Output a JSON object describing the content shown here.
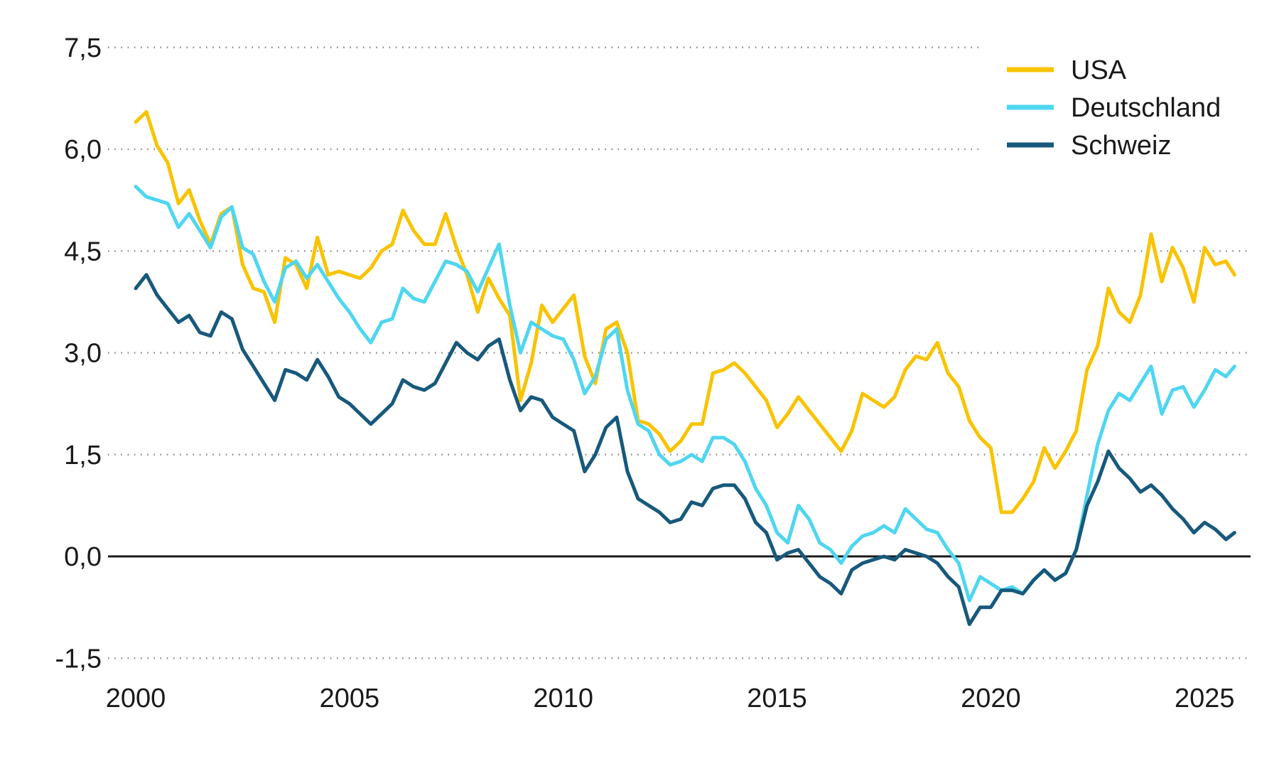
{
  "chart_data": {
    "type": "line",
    "title": "",
    "xlabel": "",
    "ylabel": "",
    "ylim": [
      -1.5,
      7.5
    ],
    "xlim": [
      2000,
      2025.7
    ],
    "grid": "dotted horizontal gridlines, solid black zero line",
    "legend_position": "top-right",
    "background_color": "#ffffff",
    "gridline_color": "#8c8c8c",
    "zero_line_color": "#1a1a1a",
    "text_color": "#1a1a1a",
    "y_ticks": [
      {
        "value": 7.5,
        "label": "7,5"
      },
      {
        "value": 6.0,
        "label": "6,0"
      },
      {
        "value": 4.5,
        "label": "4,5"
      },
      {
        "value": 3.0,
        "label": "3,0"
      },
      {
        "value": 1.5,
        "label": "1,5"
      },
      {
        "value": 0.0,
        "label": "0,0"
      },
      {
        "value": -1.5,
        "label": "-1,5"
      }
    ],
    "x_ticks": [
      {
        "value": 2000,
        "label": "2000"
      },
      {
        "value": 2005,
        "label": "2005"
      },
      {
        "value": 2010,
        "label": "2010"
      },
      {
        "value": 2015,
        "label": "2015"
      },
      {
        "value": 2020,
        "label": "2020"
      },
      {
        "value": 2025,
        "label": "2025"
      }
    ],
    "x": [
      2000.0,
      2000.25,
      2000.5,
      2000.75,
      2001.0,
      2001.25,
      2001.5,
      2001.75,
      2002.0,
      2002.25,
      2002.5,
      2002.75,
      2003.0,
      2003.25,
      2003.5,
      2003.75,
      2004.0,
      2004.25,
      2004.5,
      2004.75,
      2005.0,
      2005.25,
      2005.5,
      2005.75,
      2006.0,
      2006.25,
      2006.5,
      2006.75,
      2007.0,
      2007.25,
      2007.5,
      2007.75,
      2008.0,
      2008.25,
      2008.5,
      2008.75,
      2009.0,
      2009.25,
      2009.5,
      2009.75,
      2010.0,
      2010.25,
      2010.5,
      2010.75,
      2011.0,
      2011.25,
      2011.5,
      2011.75,
      2012.0,
      2012.25,
      2012.5,
      2012.75,
      2013.0,
      2013.25,
      2013.5,
      2013.75,
      2014.0,
      2014.25,
      2014.5,
      2014.75,
      2015.0,
      2015.25,
      2015.5,
      2015.75,
      2016.0,
      2016.25,
      2016.5,
      2016.75,
      2017.0,
      2017.25,
      2017.5,
      2017.75,
      2018.0,
      2018.25,
      2018.5,
      2018.75,
      2019.0,
      2019.25,
      2019.5,
      2019.75,
      2020.0,
      2020.25,
      2020.5,
      2020.75,
      2021.0,
      2021.25,
      2021.5,
      2021.75,
      2022.0,
      2022.25,
      2022.5,
      2022.75,
      2023.0,
      2023.25,
      2023.5,
      2023.75,
      2024.0,
      2024.25,
      2024.5,
      2024.75,
      2025.0,
      2025.25,
      2025.5,
      2025.7
    ],
    "series": [
      {
        "name": "USA",
        "color": "#F9C300",
        "values": [
          6.4,
          6.55,
          6.05,
          5.8,
          5.2,
          5.4,
          4.95,
          4.6,
          5.05,
          5.15,
          4.3,
          3.95,
          3.9,
          3.45,
          4.4,
          4.3,
          3.95,
          4.7,
          4.15,
          4.2,
          4.15,
          4.1,
          4.25,
          4.5,
          4.6,
          5.1,
          4.8,
          4.6,
          4.6,
          5.05,
          4.55,
          4.15,
          3.6,
          4.1,
          3.8,
          3.55,
          2.3,
          2.85,
          3.7,
          3.45,
          3.65,
          3.85,
          2.95,
          2.55,
          3.35,
          3.45,
          3.0,
          2.0,
          1.95,
          1.8,
          1.55,
          1.7,
          1.95,
          1.95,
          2.7,
          2.75,
          2.85,
          2.7,
          2.5,
          2.3,
          1.9,
          2.1,
          2.35,
          2.15,
          1.95,
          1.75,
          1.55,
          1.85,
          2.4,
          2.3,
          2.2,
          2.35,
          2.75,
          2.95,
          2.9,
          3.15,
          2.7,
          2.5,
          2.0,
          1.75,
          1.6,
          0.65,
          0.65,
          0.85,
          1.1,
          1.6,
          1.3,
          1.55,
          1.85,
          2.75,
          3.1,
          3.95,
          3.6,
          3.45,
          3.85,
          4.75,
          4.05,
          4.55,
          4.25,
          3.75,
          4.55,
          4.3,
          4.35,
          4.15
        ]
      },
      {
        "name": "Deutschland",
        "color": "#4FD6F0",
        "values": [
          5.45,
          5.3,
          5.25,
          5.2,
          4.85,
          5.05,
          4.8,
          4.55,
          5.0,
          5.15,
          4.55,
          4.45,
          4.05,
          3.75,
          4.25,
          4.35,
          4.1,
          4.3,
          4.05,
          3.8,
          3.6,
          3.35,
          3.15,
          3.45,
          3.5,
          3.95,
          3.8,
          3.75,
          4.05,
          4.35,
          4.3,
          4.2,
          3.9,
          4.25,
          4.6,
          3.7,
          3.0,
          3.45,
          3.35,
          3.25,
          3.2,
          2.9,
          2.4,
          2.65,
          3.2,
          3.35,
          2.45,
          1.95,
          1.85,
          1.5,
          1.35,
          1.4,
          1.5,
          1.4,
          1.75,
          1.75,
          1.65,
          1.4,
          1.0,
          0.75,
          0.35,
          0.2,
          0.75,
          0.55,
          0.2,
          0.1,
          -0.1,
          0.15,
          0.3,
          0.35,
          0.45,
          0.35,
          0.7,
          0.55,
          0.4,
          0.35,
          0.1,
          -0.1,
          -0.65,
          -0.3,
          -0.4,
          -0.5,
          -0.45,
          -0.55,
          -0.35,
          -0.2,
          -0.35,
          -0.25,
          0.1,
          0.9,
          1.65,
          2.15,
          2.4,
          2.3,
          2.55,
          2.8,
          2.1,
          2.45,
          2.5,
          2.2,
          2.45,
          2.75,
          2.65,
          2.8
        ]
      },
      {
        "name": "Schweiz",
        "color": "#17597C",
        "values": [
          3.95,
          4.15,
          3.85,
          3.65,
          3.45,
          3.55,
          3.3,
          3.25,
          3.6,
          3.5,
          3.05,
          2.8,
          2.55,
          2.3,
          2.75,
          2.7,
          2.6,
          2.9,
          2.65,
          2.35,
          2.25,
          2.1,
          1.95,
          2.1,
          2.25,
          2.6,
          2.5,
          2.45,
          2.55,
          2.85,
          3.15,
          3.0,
          2.9,
          3.1,
          3.2,
          2.6,
          2.15,
          2.35,
          2.3,
          2.05,
          1.95,
          1.85,
          1.25,
          1.5,
          1.9,
          2.05,
          1.25,
          0.85,
          0.75,
          0.65,
          0.5,
          0.55,
          0.8,
          0.75,
          1.0,
          1.05,
          1.05,
          0.85,
          0.5,
          0.35,
          -0.05,
          0.05,
          0.1,
          -0.1,
          -0.3,
          -0.4,
          -0.55,
          -0.2,
          -0.1,
          -0.05,
          0.0,
          -0.05,
          0.1,
          0.05,
          0.0,
          -0.1,
          -0.3,
          -0.45,
          -1.0,
          -0.75,
          -0.75,
          -0.5,
          -0.5,
          -0.55,
          -0.35,
          -0.2,
          -0.35,
          -0.25,
          0.1,
          0.75,
          1.1,
          1.55,
          1.3,
          1.15,
          0.95,
          1.05,
          0.9,
          0.7,
          0.55,
          0.35,
          0.5,
          0.4,
          0.25,
          0.35
        ]
      }
    ]
  }
}
